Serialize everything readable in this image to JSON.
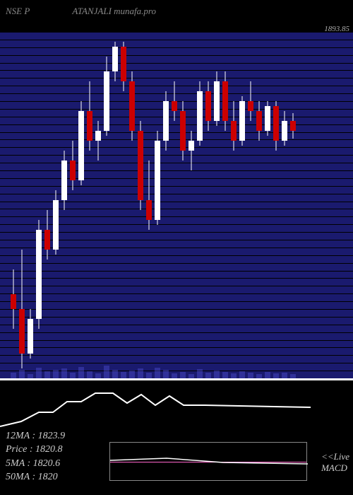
{
  "header": {
    "exchange": "NSE P",
    "symbol": "ATANJALI",
    "source": "munafa.pro"
  },
  "price_display": "1893.85",
  "chart": {
    "type": "candlestick",
    "background_color": "#1a1a6e",
    "grid_color": "#000000",
    "grid_count": 45,
    "up_color": "#ffffff",
    "down_color": "#cc0000",
    "wick_color": "#ffffff",
    "ylim": [
      1570,
      1920
    ],
    "candles": [
      {
        "x": 15,
        "open": 1655,
        "high": 1680,
        "low": 1620,
        "close": 1640
      },
      {
        "x": 27,
        "open": 1640,
        "high": 1700,
        "low": 1580,
        "close": 1595
      },
      {
        "x": 39,
        "open": 1595,
        "high": 1640,
        "low": 1590,
        "close": 1630
      },
      {
        "x": 51,
        "open": 1630,
        "high": 1730,
        "low": 1620,
        "close": 1720
      },
      {
        "x": 63,
        "open": 1720,
        "high": 1740,
        "low": 1690,
        "close": 1700
      },
      {
        "x": 75,
        "open": 1700,
        "high": 1760,
        "low": 1695,
        "close": 1750
      },
      {
        "x": 87,
        "open": 1750,
        "high": 1800,
        "low": 1740,
        "close": 1790
      },
      {
        "x": 99,
        "open": 1790,
        "high": 1810,
        "low": 1760,
        "close": 1770
      },
      {
        "x": 111,
        "open": 1770,
        "high": 1850,
        "low": 1765,
        "close": 1840
      },
      {
        "x": 123,
        "open": 1840,
        "high": 1870,
        "low": 1800,
        "close": 1810
      },
      {
        "x": 135,
        "open": 1810,
        "high": 1830,
        "low": 1790,
        "close": 1820
      },
      {
        "x": 147,
        "open": 1820,
        "high": 1895,
        "low": 1815,
        "close": 1880
      },
      {
        "x": 159,
        "open": 1880,
        "high": 1910,
        "low": 1870,
        "close": 1905
      },
      {
        "x": 171,
        "open": 1905,
        "high": 1910,
        "low": 1860,
        "close": 1870
      },
      {
        "x": 183,
        "open": 1870,
        "high": 1880,
        "low": 1810,
        "close": 1820
      },
      {
        "x": 195,
        "open": 1820,
        "high": 1830,
        "low": 1740,
        "close": 1750
      },
      {
        "x": 207,
        "open": 1750,
        "high": 1790,
        "low": 1720,
        "close": 1730
      },
      {
        "x": 219,
        "open": 1730,
        "high": 1820,
        "low": 1725,
        "close": 1810
      },
      {
        "x": 231,
        "open": 1810,
        "high": 1860,
        "low": 1800,
        "close": 1850
      },
      {
        "x": 243,
        "open": 1850,
        "high": 1870,
        "low": 1830,
        "close": 1840
      },
      {
        "x": 255,
        "open": 1840,
        "high": 1850,
        "low": 1790,
        "close": 1800
      },
      {
        "x": 267,
        "open": 1800,
        "high": 1820,
        "low": 1780,
        "close": 1810
      },
      {
        "x": 279,
        "open": 1810,
        "high": 1870,
        "low": 1805,
        "close": 1860
      },
      {
        "x": 291,
        "open": 1860,
        "high": 1870,
        "low": 1820,
        "close": 1830
      },
      {
        "x": 303,
        "open": 1830,
        "high": 1880,
        "low": 1825,
        "close": 1870
      },
      {
        "x": 315,
        "open": 1870,
        "high": 1880,
        "low": 1820,
        "close": 1830
      },
      {
        "x": 327,
        "open": 1830,
        "high": 1850,
        "low": 1800,
        "close": 1810
      },
      {
        "x": 339,
        "open": 1810,
        "high": 1855,
        "low": 1805,
        "close": 1850
      },
      {
        "x": 351,
        "open": 1850,
        "high": 1870,
        "low": 1830,
        "close": 1840
      },
      {
        "x": 363,
        "open": 1840,
        "high": 1850,
        "low": 1810,
        "close": 1820
      },
      {
        "x": 375,
        "open": 1820,
        "high": 1850,
        "low": 1815,
        "close": 1845
      },
      {
        "x": 387,
        "open": 1845,
        "high": 1850,
        "low": 1800,
        "close": 1810
      },
      {
        "x": 399,
        "open": 1810,
        "high": 1840,
        "low": 1805,
        "close": 1830
      },
      {
        "x": 411,
        "open": 1830,
        "high": 1838,
        "low": 1812,
        "close": 1820
      }
    ],
    "volume": [
      8,
      12,
      6,
      15,
      10,
      12,
      14,
      8,
      16,
      10,
      7,
      18,
      12,
      9,
      11,
      14,
      8,
      15,
      12,
      7,
      9,
      6,
      13,
      8,
      11,
      9,
      7,
      10,
      8,
      6,
      9,
      7,
      8,
      6
    ]
  },
  "macd": {
    "line_color": "#ffffff",
    "zero_color": "#ff66cc",
    "box_border": "#888888",
    "points": [
      {
        "x": 0,
        "y": 55
      },
      {
        "x": 30,
        "y": 48
      },
      {
        "x": 55,
        "y": 35
      },
      {
        "x": 75,
        "y": 35
      },
      {
        "x": 95,
        "y": 20
      },
      {
        "x": 115,
        "y": 20
      },
      {
        "x": 135,
        "y": 8
      },
      {
        "x": 160,
        "y": 8
      },
      {
        "x": 180,
        "y": 22
      },
      {
        "x": 200,
        "y": 10
      },
      {
        "x": 220,
        "y": 25
      },
      {
        "x": 240,
        "y": 12
      },
      {
        "x": 260,
        "y": 25
      },
      {
        "x": 290,
        "y": 25
      },
      {
        "x": 440,
        "y": 28
      }
    ],
    "signal_points": [
      {
        "x": 0,
        "y": 25
      },
      {
        "x": 80,
        "y": 22
      },
      {
        "x": 160,
        "y": 28
      },
      {
        "x": 280,
        "y": 30
      }
    ]
  },
  "info": {
    "ma12_label": "12MA :",
    "ma12_value": "1823.9",
    "price_label": "Price  :",
    "price_value": "1820.8",
    "ma5_label": "5MA :",
    "ma5_value": "1820.6",
    "ma50_label": "50MA :",
    "ma50_value": "1820"
  },
  "labels": {
    "live": "<<Live",
    "macd": "MACD"
  }
}
